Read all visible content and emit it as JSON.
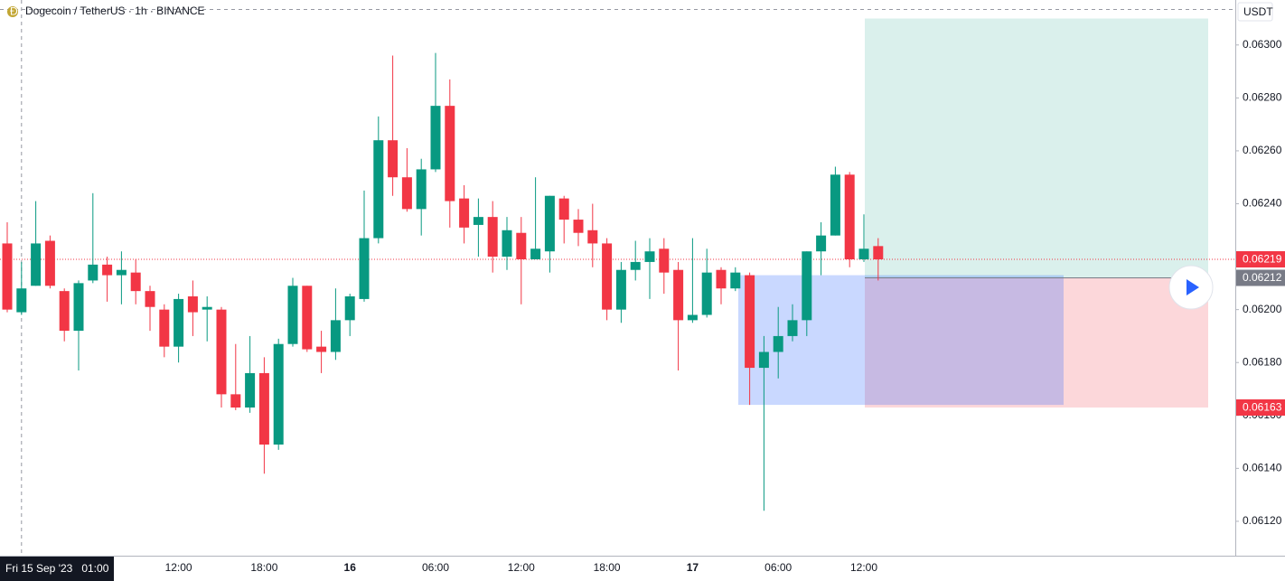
{
  "chart_data": {
    "type": "candlestick",
    "title": "Dogecoin / TetherUS · 1h · BINANCE",
    "currency": "USDT",
    "crosshair_label": "Fri 15 Sep '23   01:00",
    "categories": [
      null,
      null,
      null,
      null,
      null,
      null,
      null,
      null,
      null,
      null,
      null,
      null,
      "12:00",
      null,
      null,
      null,
      null,
      null,
      "18:00",
      null,
      null,
      null,
      null,
      null,
      "16",
      null,
      null,
      null,
      null,
      null,
      "06:00",
      null,
      null,
      null,
      null,
      null,
      "12:00",
      null,
      null,
      null,
      null,
      null,
      "18:00",
      null,
      null,
      null,
      null,
      null,
      "17",
      null,
      null,
      null,
      null,
      null,
      "06:00",
      null,
      null,
      null,
      null,
      null,
      "12:00",
      null
    ],
    "open": [
      0.06225,
      0.06199,
      0.06209,
      0.06226,
      0.06207,
      0.06192,
      0.06211,
      0.06217,
      0.06213,
      0.06214,
      0.06207,
      0.062,
      0.06186,
      0.06205,
      0.062,
      0.062,
      0.06168,
      0.06163,
      0.06176,
      0.06149,
      0.06187,
      0.06209,
      0.06186,
      0.06184,
      0.06196,
      0.06204,
      0.06227,
      0.06264,
      0.0625,
      0.06238,
      0.06253,
      0.06277,
      0.06242,
      0.06232,
      0.06235,
      0.0622,
      0.06229,
      0.06219,
      0.06222,
      0.06242,
      0.06234,
      0.0623,
      0.06225,
      0.062,
      0.06215,
      0.06218,
      0.06223,
      0.06215,
      0.06196,
      0.06198,
      0.06215,
      0.06208,
      0.06213,
      0.06178,
      0.06184,
      0.0619,
      0.06196,
      0.06222,
      0.06228,
      0.06251,
      0.06219,
      0.06224
    ],
    "high": [
      0.06233,
      0.06218,
      0.06241,
      0.06228,
      0.06208,
      0.06211,
      0.06244,
      0.0622,
      0.06222,
      0.06219,
      0.06209,
      0.06202,
      0.06206,
      0.06211,
      0.06205,
      0.06201,
      0.06187,
      0.0619,
      0.06182,
      0.06189,
      0.06212,
      0.06209,
      0.06192,
      0.06208,
      0.06206,
      0.06245,
      0.06273,
      0.06296,
      0.06261,
      0.06257,
      0.06297,
      0.06287,
      0.06247,
      0.06242,
      0.06241,
      0.06235,
      0.06235,
      0.0625,
      0.06243,
      0.06243,
      0.06238,
      0.0624,
      0.06227,
      0.06218,
      0.06226,
      0.06227,
      0.06227,
      0.06218,
      0.06227,
      0.06223,
      0.06216,
      0.06216,
      0.06214,
      0.0619,
      0.06201,
      0.06202,
      0.06222,
      0.06233,
      0.06254,
      0.06252,
      0.06236,
      0.06227
    ],
    "low": [
      0.06199,
      0.06198,
      0.06209,
      0.06208,
      0.06188,
      0.06177,
      0.0621,
      0.06203,
      0.06202,
      0.06202,
      0.06192,
      0.06182,
      0.0618,
      0.0619,
      0.06188,
      0.06163,
      0.06162,
      0.06161,
      0.06138,
      0.06147,
      0.06186,
      0.06184,
      0.06176,
      0.06181,
      0.0619,
      0.06203,
      0.06225,
      0.06243,
      0.06237,
      0.06228,
      0.06252,
      0.06231,
      0.06225,
      0.0622,
      0.06214,
      0.06215,
      0.06202,
      0.06219,
      0.06214,
      0.06225,
      0.06224,
      0.06216,
      0.06196,
      0.06195,
      0.06211,
      0.06204,
      0.06206,
      0.06177,
      0.06195,
      0.06197,
      0.06202,
      0.06207,
      0.06164,
      0.06124,
      0.06174,
      0.06188,
      0.0619,
      0.06213,
      0.06228,
      0.06216,
      0.06218,
      0.06211
    ],
    "close": [
      0.062,
      0.06208,
      0.06225,
      0.06209,
      0.06192,
      0.0621,
      0.06217,
      0.06213,
      0.06215,
      0.06207,
      0.06201,
      0.06186,
      0.06204,
      0.06199,
      0.06201,
      0.06168,
      0.06163,
      0.06176,
      0.06149,
      0.06187,
      0.06209,
      0.06185,
      0.06184,
      0.06196,
      0.06205,
      0.06227,
      0.06264,
      0.0625,
      0.06238,
      0.06253,
      0.06277,
      0.06241,
      0.06231,
      0.06235,
      0.0622,
      0.0623,
      0.06219,
      0.06223,
      0.06243,
      0.06234,
      0.06229,
      0.06225,
      0.062,
      0.06215,
      0.06218,
      0.06222,
      0.06214,
      0.06196,
      0.06198,
      0.06214,
      0.06208,
      0.06214,
      0.06178,
      0.06184,
      0.0619,
      0.06196,
      0.06222,
      0.06228,
      0.06251,
      0.06219,
      0.06223,
      0.06219
    ],
    "up_color": "#089981",
    "down_color": "#f23645",
    "ylim": [
      0.06107,
      0.06317
    ],
    "yticks": [
      {
        "value": 0.0612,
        "label": "0.06120"
      },
      {
        "value": 0.0614,
        "label": "0.06140"
      },
      {
        "value": 0.0616,
        "label": "0.06160"
      },
      {
        "value": 0.0618,
        "label": "0.06180"
      },
      {
        "value": 0.062,
        "label": "0.06200"
      },
      {
        "value": 0.0622,
        "label": "0.06220"
      },
      {
        "value": 0.0624,
        "label": "0.06240"
      },
      {
        "value": 0.0626,
        "label": "0.06260"
      },
      {
        "value": 0.0628,
        "label": "0.06280"
      },
      {
        "value": 0.063,
        "label": "0.06300"
      }
    ],
    "last_price": 0.06219,
    "position": {
      "target": 0.0631,
      "entry": 0.06212,
      "stop": 0.06163
    },
    "zone": {
      "top": 0.06213,
      "bottom": 0.06164
    }
  }
}
